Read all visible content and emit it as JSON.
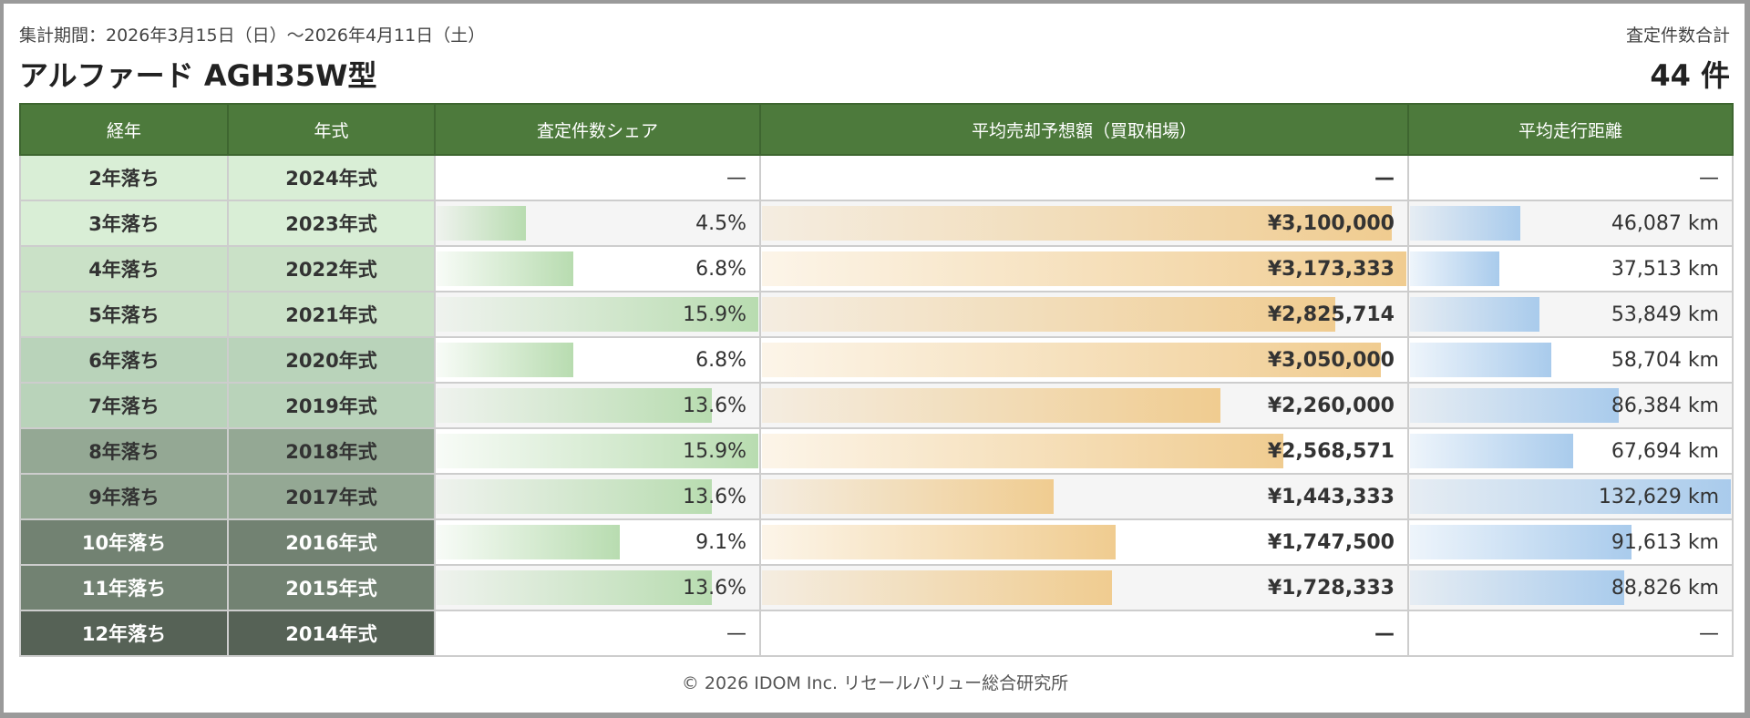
{
  "header": {
    "period": "集計期間：2026年3月15日（日）〜2026年4月11日（土）",
    "title": "アルファード AGH35W型",
    "total_label": "査定件数合計",
    "total": "44 件"
  },
  "columns": [
    "経年",
    "年式",
    "査定件数シェア",
    "平均売却予想額（買取相場）",
    "平均走行距離"
  ],
  "colors": {
    "header_bg": "#4d7a3c",
    "share_bar": "#b8dcb0",
    "price_bar": "#f0cc90",
    "mileage_bar": "#a9cbec"
  },
  "maxima": {
    "share": 15.9,
    "price": 3173333,
    "mileage": 132629
  },
  "rows": [
    {
      "age": "2年落ち",
      "year": "2024年式",
      "share": "—",
      "share_val": null,
      "price": "—",
      "price_val": null,
      "mileage": "—",
      "mileage_val": null,
      "bg": "#d9eed6",
      "fg": "#333"
    },
    {
      "age": "3年落ち",
      "year": "2023年式",
      "share": "4.5%",
      "share_val": 4.5,
      "price": "¥3,100,000",
      "price_val": 3100000,
      "mileage": "46,087 km",
      "mileage_val": 46087,
      "bg": "#d9eed6",
      "fg": "#333"
    },
    {
      "age": "4年落ち",
      "year": "2022年式",
      "share": "6.8%",
      "share_val": 6.8,
      "price": "¥3,173,333",
      "price_val": 3173333,
      "mileage": "37,513 km",
      "mileage_val": 37513,
      "bg": "#cae1c7",
      "fg": "#333"
    },
    {
      "age": "5年落ち",
      "year": "2021年式",
      "share": "15.9%",
      "share_val": 15.9,
      "price": "¥2,825,714",
      "price_val": 2825714,
      "mileage": "53,849 km",
      "mileage_val": 53849,
      "bg": "#cae1c7",
      "fg": "#333"
    },
    {
      "age": "6年落ち",
      "year": "2020年式",
      "share": "6.8%",
      "share_val": 6.8,
      "price": "¥3,050,000",
      "price_val": 3050000,
      "mileage": "58,704 km",
      "mileage_val": 58704,
      "bg": "#b9d3ba",
      "fg": "#333"
    },
    {
      "age": "7年落ち",
      "year": "2019年式",
      "share": "13.6%",
      "share_val": 13.6,
      "price": "¥2,260,000",
      "price_val": 2260000,
      "mileage": "86,384 km",
      "mileage_val": 86384,
      "bg": "#b9d3ba",
      "fg": "#333"
    },
    {
      "age": "8年落ち",
      "year": "2018年式",
      "share": "15.9%",
      "share_val": 15.9,
      "price": "¥2,568,571",
      "price_val": 2568571,
      "mileage": "67,694 km",
      "mileage_val": 67694,
      "bg": "#94a894",
      "fg": "#333"
    },
    {
      "age": "9年落ち",
      "year": "2017年式",
      "share": "13.6%",
      "share_val": 13.6,
      "price": "¥1,443,333",
      "price_val": 1443333,
      "mileage": "132,629 km",
      "mileage_val": 132629,
      "bg": "#94a894",
      "fg": "#333"
    },
    {
      "age": "10年落ち",
      "year": "2016年式",
      "share": "9.1%",
      "share_val": 9.1,
      "price": "¥1,747,500",
      "price_val": 1747500,
      "mileage": "91,613 km",
      "mileage_val": 91613,
      "bg": "#728272",
      "fg": "#fff"
    },
    {
      "age": "11年落ち",
      "year": "2015年式",
      "share": "13.6%",
      "share_val": 13.6,
      "price": "¥1,728,333",
      "price_val": 1728333,
      "mileage": "88,826 km",
      "mileage_val": 88826,
      "bg": "#728272",
      "fg": "#fff"
    },
    {
      "age": "12年落ち",
      "year": "2014年式",
      "share": "—",
      "share_val": null,
      "price": "—",
      "price_val": null,
      "mileage": "—",
      "mileage_val": null,
      "bg": "#566256",
      "fg": "#fff"
    }
  ],
  "footer": "© 2026 IDOM Inc. リセールバリュー総合研究所"
}
